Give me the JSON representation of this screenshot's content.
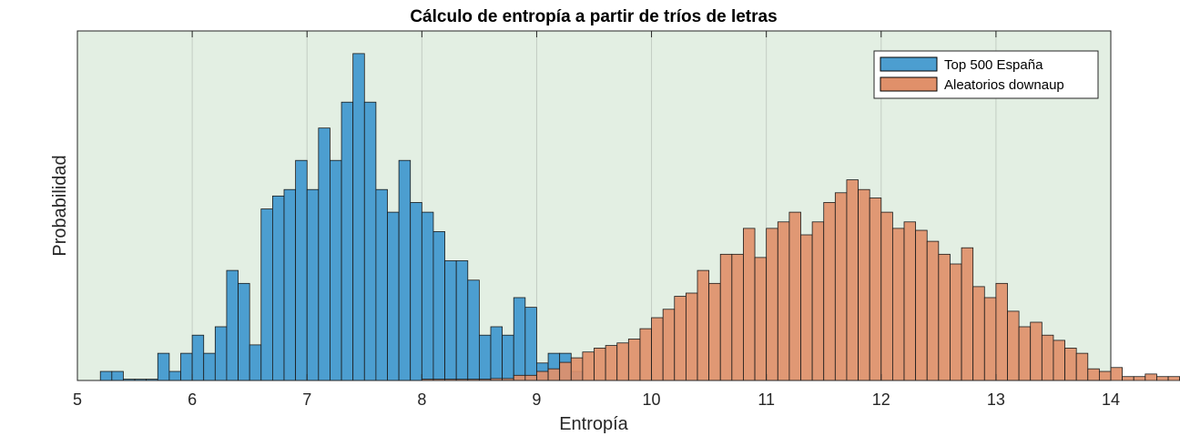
{
  "chart_data": {
    "type": "bar",
    "title": "Cálculo de entropía a partir de tríos de letras",
    "xlabel": "Entropía",
    "ylabel": "Probabilidad",
    "xlim": [
      5,
      14
    ],
    "ylim": [
      0,
      0.054
    ],
    "xticks": [
      "5",
      "6",
      "7",
      "8",
      "9",
      "10",
      "11",
      "12",
      "13",
      "14"
    ],
    "grid": "vertical",
    "legend_position": "top-right",
    "background_color": "#E3EFE3",
    "bin_width": 0.1,
    "series": [
      {
        "name": "Top 500 España",
        "color": "#4C9ED0",
        "bin_start": 5.2,
        "values": [
          0.0014,
          0.0014,
          0.0002,
          0.0002,
          0.0002,
          0.0042,
          0.0014,
          0.0042,
          0.007,
          0.0042,
          0.0083,
          0.017,
          0.015,
          0.0055,
          0.0265,
          0.0285,
          0.0295,
          0.034,
          0.0295,
          0.039,
          0.034,
          0.043,
          0.0505,
          0.043,
          0.0295,
          0.026,
          0.034,
          0.0275,
          0.026,
          0.023,
          0.0185,
          0.0185,
          0.0155,
          0.007,
          0.0083,
          0.007,
          0.0128,
          0.0113,
          0.0027,
          0.0042,
          0.0042,
          0.0014
        ]
      },
      {
        "name": "Aleatorios downaup",
        "color": "#E0906A",
        "bin_start": 8.0,
        "values": [
          0.0002,
          0.0002,
          0.0002,
          0.0002,
          0.0002,
          0.0002,
          0.0003,
          0.0003,
          0.0008,
          0.0008,
          0.0014,
          0.0018,
          0.0028,
          0.0035,
          0.0044,
          0.005,
          0.0054,
          0.0058,
          0.0064,
          0.008,
          0.0097,
          0.011,
          0.013,
          0.0135,
          0.017,
          0.015,
          0.0195,
          0.0195,
          0.0235,
          0.019,
          0.0235,
          0.0245,
          0.026,
          0.0225,
          0.0245,
          0.0275,
          0.029,
          0.031,
          0.0295,
          0.0282,
          0.026,
          0.0235,
          0.0245,
          0.0232,
          0.0215,
          0.0195,
          0.018,
          0.0205,
          0.0145,
          0.0128,
          0.015,
          0.0107,
          0.0083,
          0.009,
          0.007,
          0.0062,
          0.005,
          0.0042,
          0.0018,
          0.0014,
          0.002,
          0.0006,
          0.0006,
          0.001,
          0.0006,
          0.0006,
          0.0004,
          0.0002,
          0.0002
        ]
      }
    ]
  }
}
